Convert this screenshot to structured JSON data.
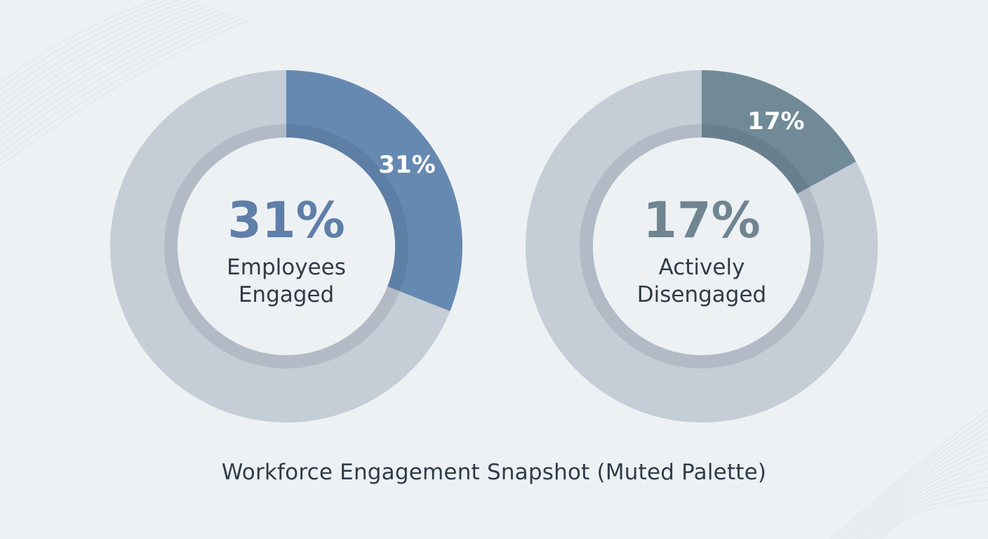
{
  "chart_data": [
    {
      "type": "pie",
      "value": 31,
      "value_label": "31%",
      "center_value": "31%",
      "center_label_lines": [
        "Employees",
        "Engaged"
      ],
      "segment_color": "#6689b2",
      "center_value_color": "#5f7fa8",
      "remainder_color": "#c5cdd6"
    },
    {
      "type": "pie",
      "value": 17,
      "value_label": "17%",
      "center_value": "17%",
      "center_label_lines": [
        "Actively",
        "Disengaged"
      ],
      "segment_color": "#718a98",
      "center_value_color": "#708592",
      "remainder_color": "#c5cdd6"
    }
  ],
  "caption": "Workforce Engagement Snapshot (Muted Palette)"
}
